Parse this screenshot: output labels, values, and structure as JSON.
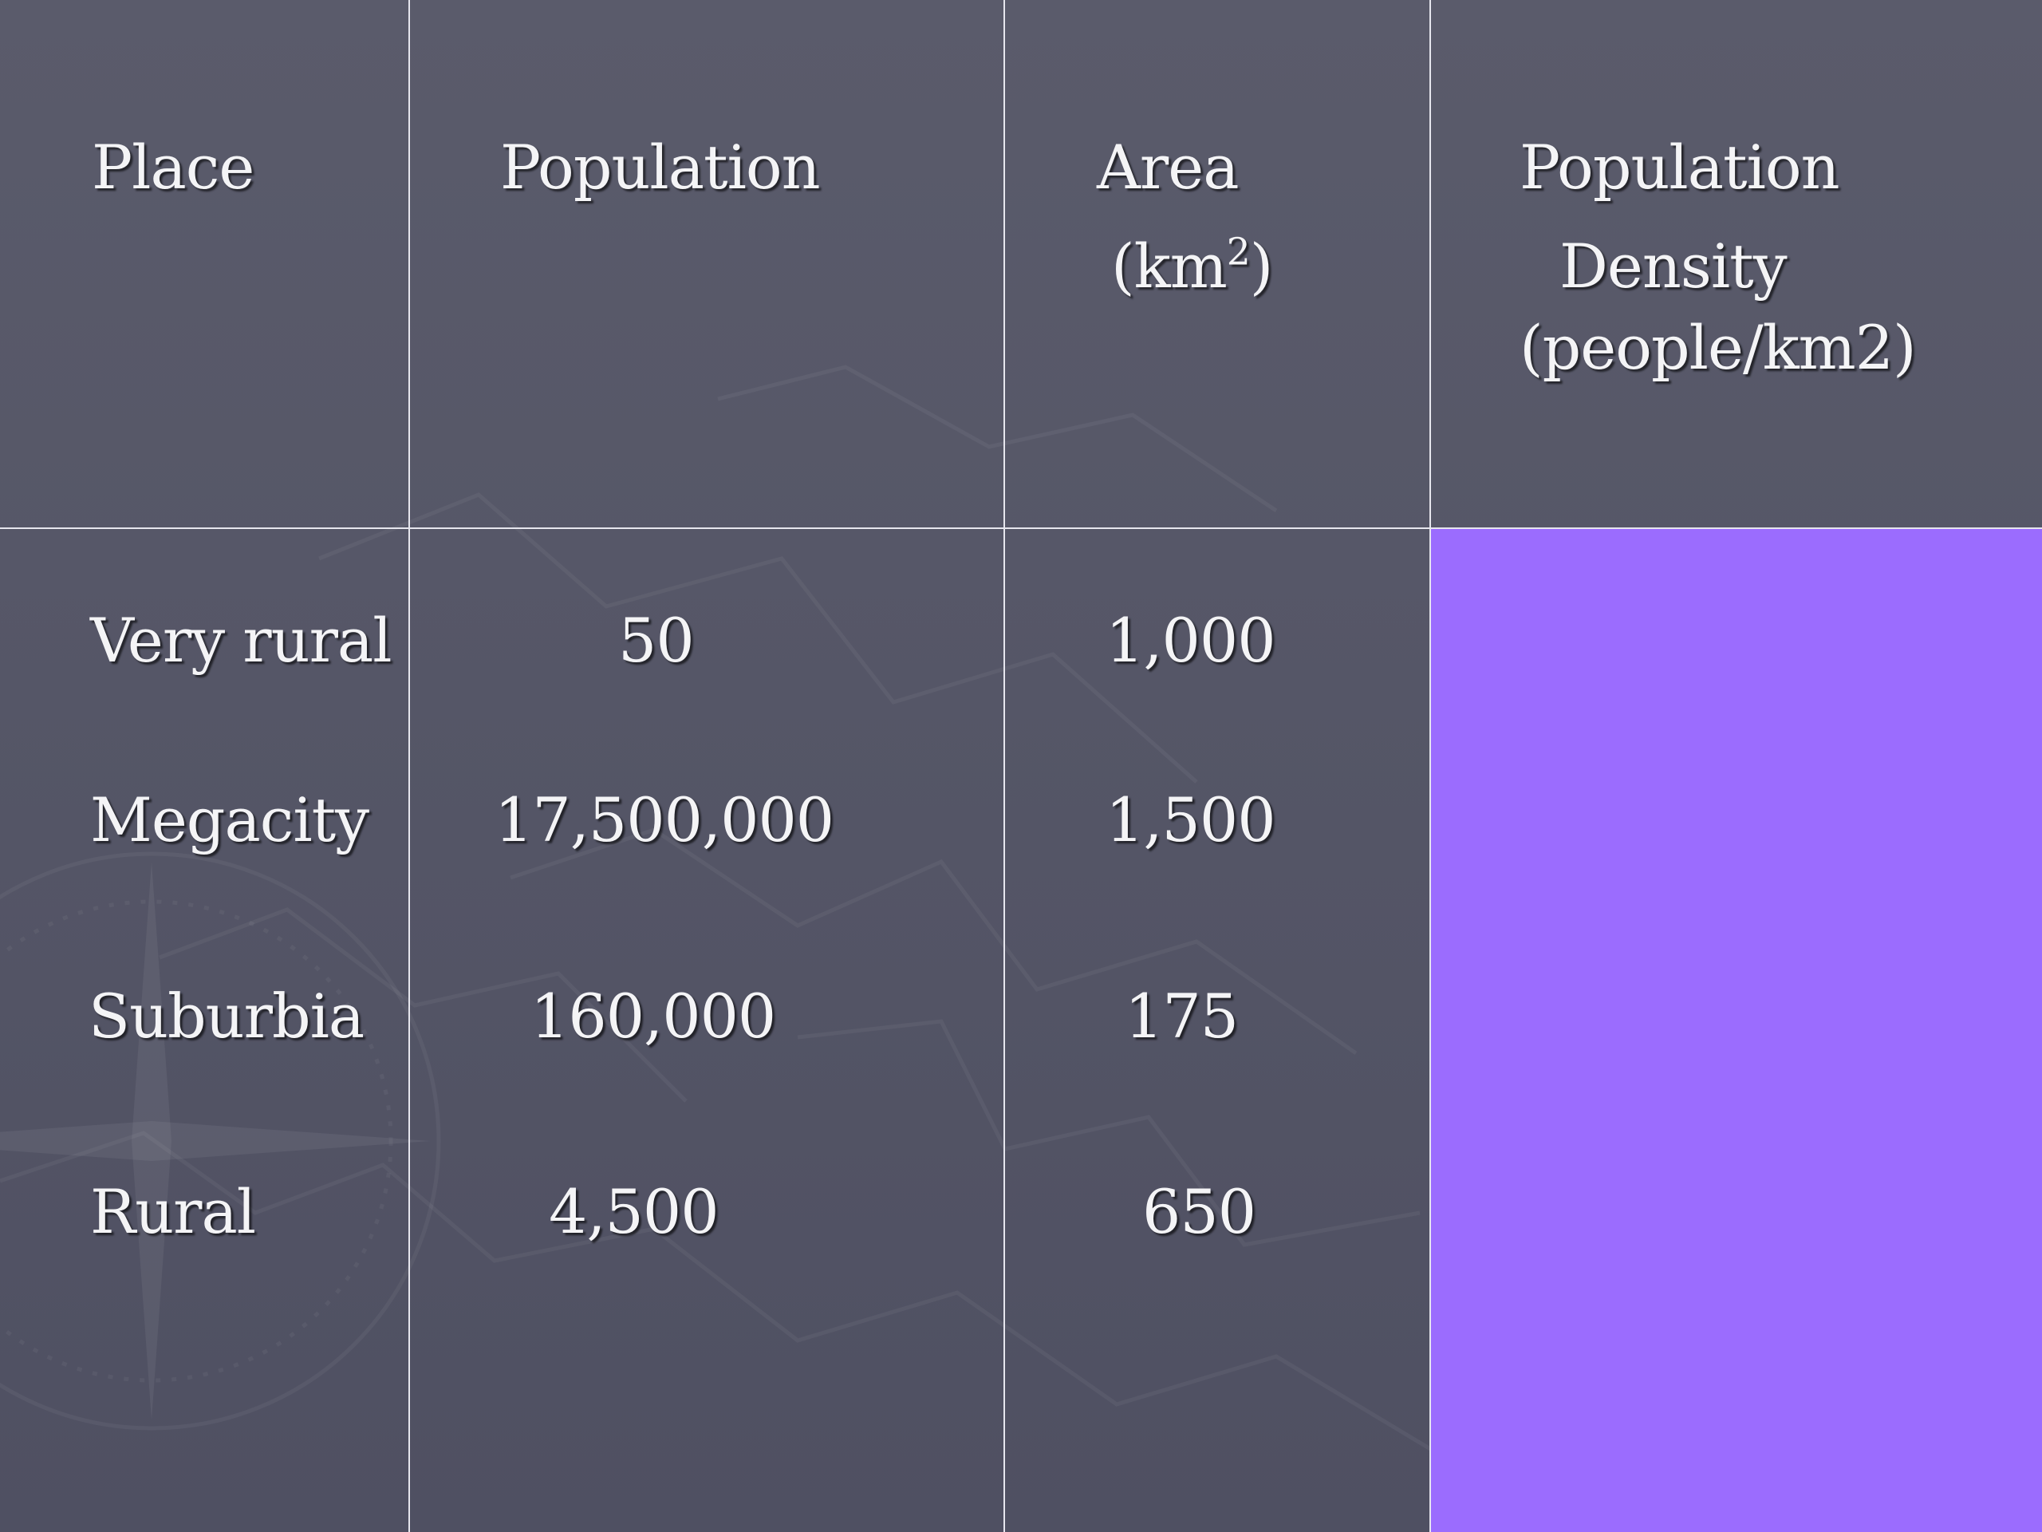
{
  "table": {
    "headers": {
      "place": "Place",
      "population": "Population",
      "area": "Area",
      "area_unit_prefix": "(km",
      "area_unit_sup": "2",
      "area_unit_suffix": ")",
      "density_line1": "Population",
      "density_line2": "Density",
      "density_line3": "(people/km2)"
    },
    "rows": [
      {
        "place": "Very rural",
        "population": "50",
        "area": "1,000",
        "density": ""
      },
      {
        "place": "Megacity",
        "population": "17,500,000",
        "area": "1,500",
        "density": ""
      },
      {
        "place": "Suburbia",
        "population": "160,000",
        "area": "175",
        "density": ""
      },
      {
        "place": "Rural",
        "population": "4,500",
        "area": "650",
        "density": ""
      }
    ]
  },
  "colors": {
    "background": "#575868",
    "grid_lines": "#e6e6ee",
    "density_cell_highlight": "#9b6cfe",
    "text": "#f4f4f6"
  }
}
